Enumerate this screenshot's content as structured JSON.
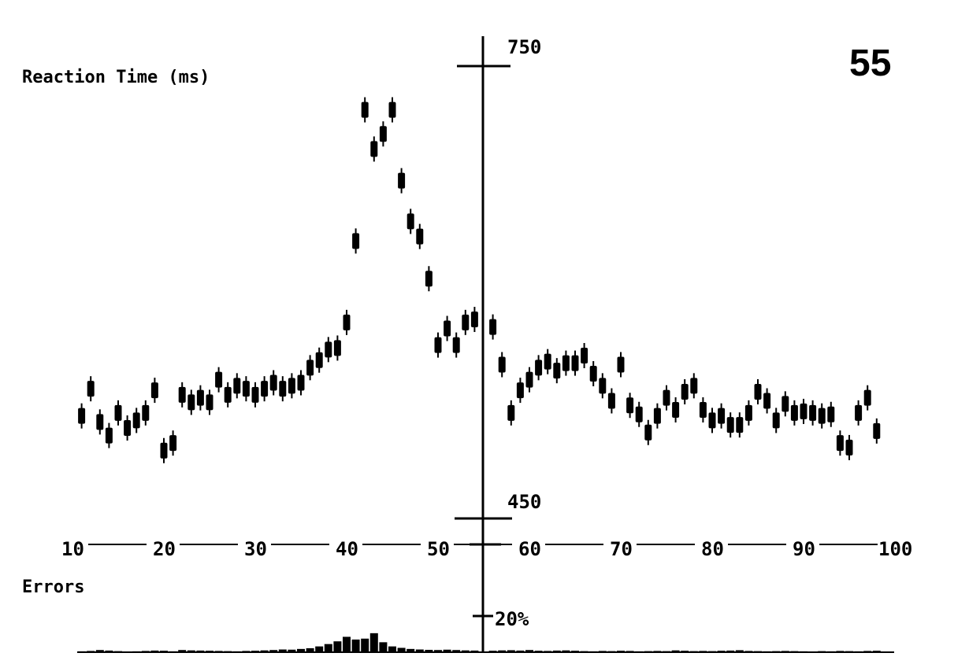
{
  "chart_data": {
    "type": "scatter",
    "panel_number": "55",
    "title": "Reaction Time (ms)",
    "errors_label": "Errors",
    "boundary_x": 55,
    "y_range": [
      450,
      750
    ],
    "y_ticks": [
      "750",
      "450"
    ],
    "error_tick": "20%",
    "error_range": [
      0,
      20
    ],
    "x_range": [
      10,
      100
    ],
    "x_ticks": [
      "10",
      "20",
      "30",
      "40",
      "50",
      "60",
      "70",
      "80",
      "90",
      "100"
    ],
    "series": [
      {
        "x": [
          11,
          12,
          13,
          14,
          15,
          16,
          17,
          18,
          19,
          20,
          21,
          22,
          23,
          24,
          25,
          26,
          27,
          28,
          29,
          30,
          31,
          32,
          33,
          34,
          35,
          36,
          37,
          38,
          39,
          40,
          41,
          42,
          43,
          44,
          45,
          46,
          47,
          48,
          49,
          50,
          51,
          52,
          53,
          54,
          56,
          57,
          58,
          59,
          60,
          61,
          62,
          63,
          64,
          65,
          66,
          67,
          68,
          69,
          70,
          71,
          72,
          73,
          74,
          75,
          76,
          77,
          78,
          79,
          80,
          81,
          82,
          83,
          84,
          85,
          86,
          87,
          88,
          89,
          90,
          91,
          92,
          93,
          94,
          95,
          96,
          97,
          98
        ],
        "y": [
          518,
          536,
          514,
          505,
          520,
          510,
          515,
          520,
          535,
          495,
          500,
          532,
          527,
          530,
          527,
          542,
          532,
          538,
          536,
          532,
          536,
          540,
          536,
          538,
          540,
          550,
          555,
          562,
          563,
          580,
          634,
          721,
          695,
          705,
          721,
          674,
          647,
          637,
          609,
          565,
          576,
          565,
          580,
          582,
          577,
          552,
          520,
          535,
          542,
          550,
          554,
          548,
          553,
          553,
          558,
          546,
          538,
          528,
          552,
          525,
          519,
          507,
          518,
          530,
          522,
          534,
          538,
          522,
          515,
          518,
          512,
          512,
          520,
          534,
          528,
          515,
          526,
          520,
          521,
          520,
          518,
          519,
          500,
          497,
          520,
          530,
          508
        ],
        "errors": [
          0.5,
          0.7,
          1.2,
          0.9,
          0.6,
          0.4,
          0.5,
          0.7,
          0.9,
          0.8,
          0.5,
          1.2,
          1.0,
          0.9,
          0.8,
          0.7,
          0.6,
          0.5,
          0.7,
          0.8,
          1.0,
          1.2,
          1.5,
          1.4,
          1.8,
          2.2,
          3.2,
          4.5,
          6.0,
          8.5,
          7.0,
          7.5,
          10.5,
          5.5,
          3.2,
          2.4,
          1.8,
          1.5,
          1.3,
          1.2,
          1.4,
          1.2,
          1.0,
          0.9,
          0.8,
          1.0,
          1.1,
          0.9,
          1.2,
          0.8,
          0.7,
          0.9,
          1.0,
          0.8,
          0.6,
          0.5,
          0.7,
          0.6,
          0.8,
          0.7,
          0.5,
          0.6,
          0.7,
          0.6,
          1.0,
          0.8,
          0.6,
          0.7,
          0.6,
          0.8,
          0.9,
          1.1,
          0.7,
          0.6,
          0.5,
          0.6,
          0.7,
          0.6,
          0.5,
          0.4,
          0.6,
          0.5,
          0.7,
          0.6,
          0.5,
          0.7,
          0.8
        ]
      }
    ]
  }
}
